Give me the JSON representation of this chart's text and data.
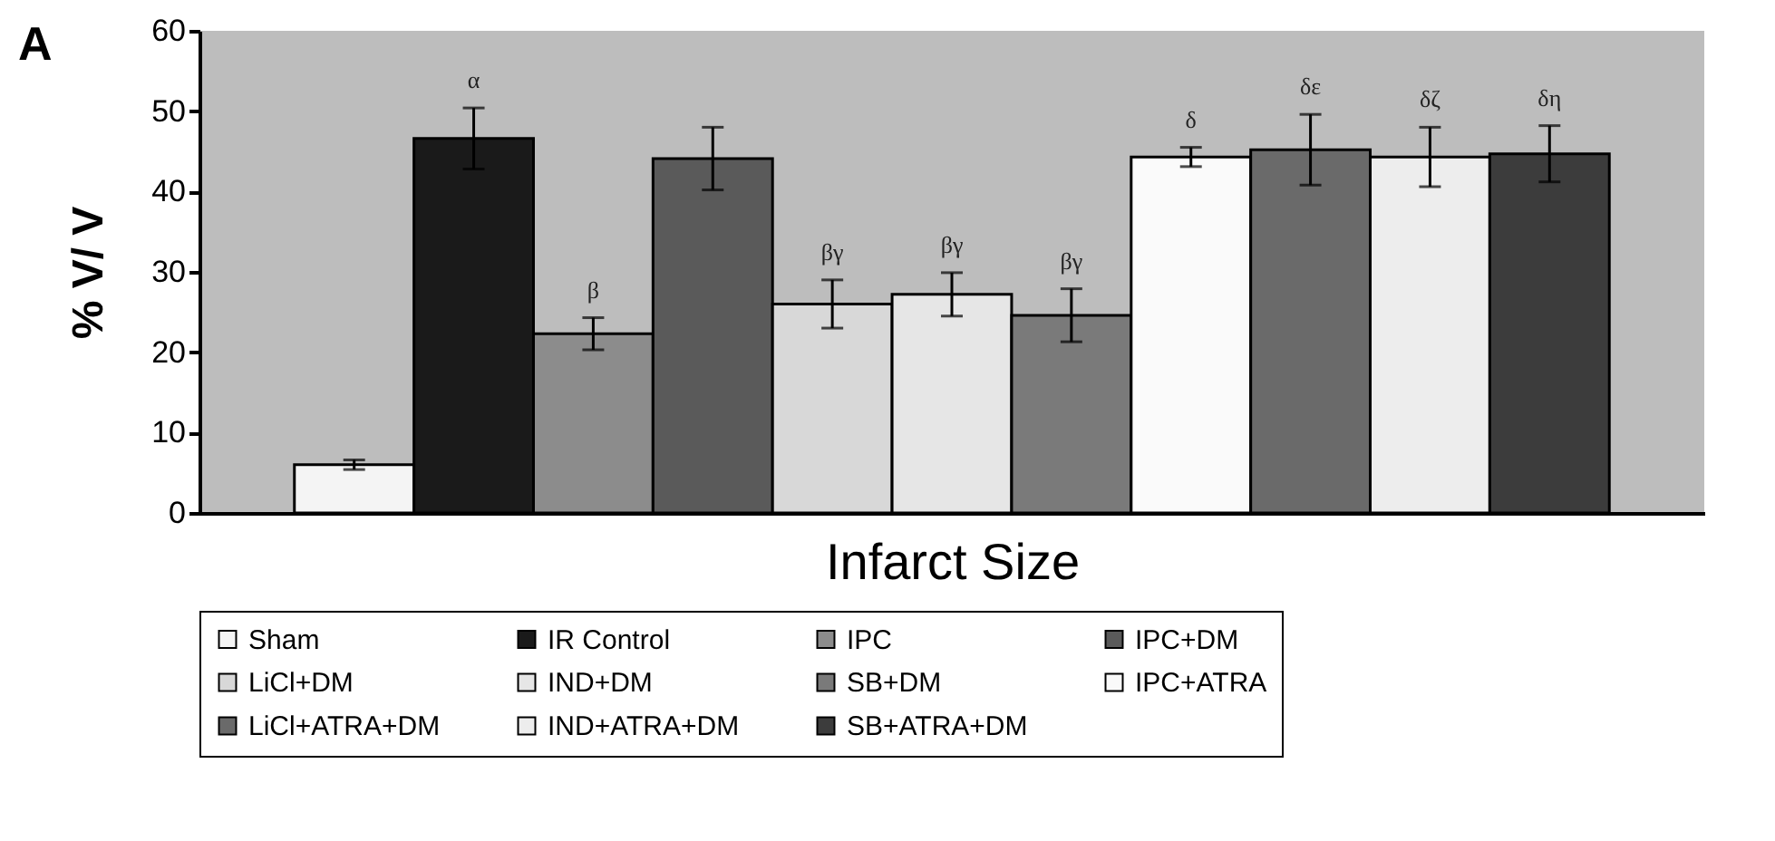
{
  "chart_data": {
    "type": "bar",
    "title": "A",
    "xlabel": "Infarct Size",
    "ylabel": "% V/ V",
    "categories": [
      null
    ],
    "series": [
      {
        "name": "Sham",
        "color": "#f4f4f4",
        "values": [
          6.0
        ],
        "errors": [
          0.6
        ]
      },
      {
        "name": "IR Control",
        "color": "#1a1a1a",
        "values": [
          46.6
        ],
        "errors": [
          3.8
        ],
        "value_labels": [
          "α"
        ]
      },
      {
        "name": "IPC",
        "color": "#8c8c8c",
        "values": [
          22.3
        ],
        "errors": [
          2.0
        ],
        "value_labels": [
          "β"
        ]
      },
      {
        "name": "IPC+DM",
        "color": "#5a5a5a",
        "values": [
          44.1
        ],
        "errors": [
          3.9
        ]
      },
      {
        "name": "LiCl+DM",
        "color": "#d8d8d8",
        "values": [
          26.0
        ],
        "errors": [
          3.0
        ],
        "value_labels": [
          "βγ"
        ]
      },
      {
        "name": "IND+DM",
        "color": "#e6e6e6",
        "values": [
          27.2
        ],
        "errors": [
          2.7
        ],
        "value_labels": [
          "βγ"
        ]
      },
      {
        "name": "SB+DM",
        "color": "#7a7a7a",
        "values": [
          24.6
        ],
        "errors": [
          3.3
        ],
        "value_labels": [
          "βγ"
        ]
      },
      {
        "name": "IPC+ATRA",
        "color": "#fafafa",
        "values": [
          44.3
        ],
        "errors": [
          1.2
        ],
        "value_labels": [
          "δ"
        ]
      },
      {
        "name": "LiCl+ATRA+DM",
        "color": "#6a6a6a",
        "values": [
          45.2
        ],
        "errors": [
          4.4
        ],
        "value_labels": [
          "δε"
        ]
      },
      {
        "name": "IND+ATRA+DM",
        "color": "#ededed",
        "values": [
          44.3
        ],
        "errors": [
          3.7
        ],
        "value_labels": [
          "δζ"
        ]
      },
      {
        "name": "SB+ATRA+DM",
        "color": "#3c3c3c",
        "values": [
          44.7
        ],
        "errors": [
          3.5
        ],
        "value_labels": [
          "δη"
        ]
      }
    ],
    "ylim": [
      0,
      60
    ],
    "yticks": [
      0,
      10,
      20,
      30,
      40,
      50,
      60
    ],
    "grid": false,
    "legend": "bottom",
    "tick_labels": "y"
  }
}
